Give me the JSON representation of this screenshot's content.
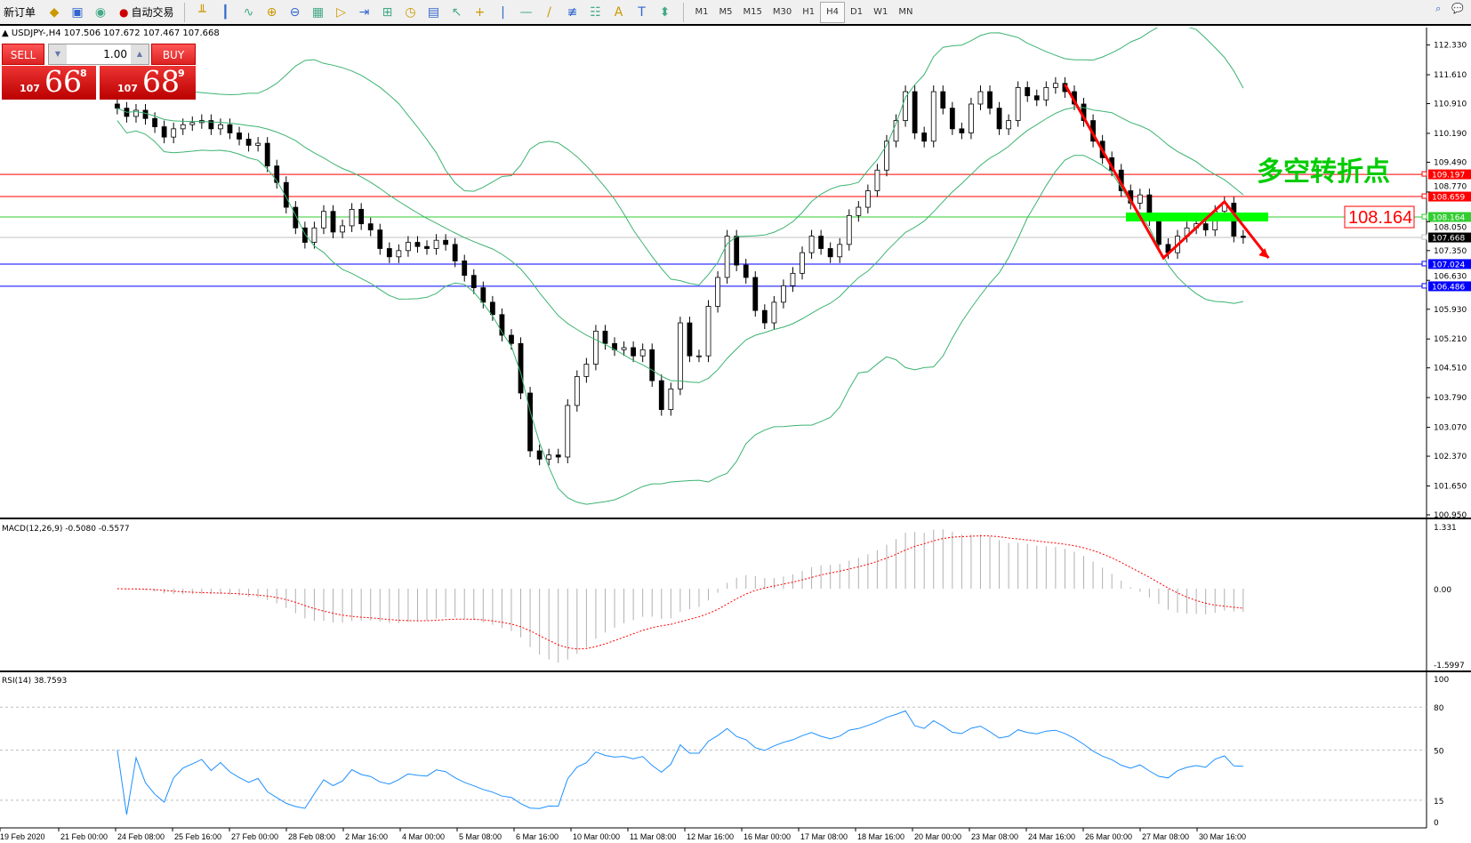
{
  "toolbar": {
    "new_order": "新订单",
    "auto_trading": "自动交易",
    "icons": [
      "market-watch-icon",
      "data-window-icon",
      "signals-icon",
      "bar-chart-icon",
      "candlestick-icon",
      "line-chart-icon",
      "zoom-in-icon",
      "zoom-out-icon",
      "tile-windows-icon",
      "auto-scroll-icon",
      "chart-shift-icon",
      "indicators-icon",
      "periods-icon",
      "templates-icon",
      "cursor-icon",
      "crosshair-icon",
      "vertical-line-icon",
      "horizontal-line-icon",
      "trendline-icon",
      "equidistant-channel-icon",
      "fibonacci-icon",
      "text-icon",
      "text-label-icon",
      "arrows-icon"
    ],
    "glyphs": [
      "◆",
      "▣",
      "◉",
      "╨",
      "┃",
      "∿",
      "⊕",
      "⊖",
      "▦",
      "▷",
      "⇥",
      "⊞",
      "◷",
      "▤",
      "↖",
      "+",
      "|",
      "—",
      "/",
      "≢",
      "☷",
      "A",
      "T",
      "⬍"
    ],
    "timeframes": [
      "M1",
      "M5",
      "M15",
      "M30",
      "H1",
      "H4",
      "D1",
      "W1",
      "MN"
    ],
    "active_timeframe": "H4"
  },
  "symbol_header": "USDJPY-,H4  107.506 107.672 107.467 107.668",
  "trade_panel": {
    "sell_label": "SELL",
    "buy_label": "BUY",
    "lot": "1.00",
    "sell_price": {
      "small": "107",
      "main": "66",
      "pip": "8"
    },
    "buy_price": {
      "small": "107",
      "main": "68",
      "pip": "9"
    }
  },
  "price_axis": [
    "112.330",
    "111.610",
    "110.910",
    "110.190",
    "109.490",
    "108.770",
    "108.050",
    "107.350",
    "106.630",
    "105.930",
    "105.210",
    "104.510",
    "103.790",
    "103.070",
    "102.370",
    "101.650",
    "100.950"
  ],
  "hlines": [
    {
      "value": "109.197",
      "color": "#ff0000"
    },
    {
      "value": "108.659",
      "color": "#ff0000"
    },
    {
      "value": "108.164",
      "color": "#32cd32"
    },
    {
      "value": "107.668",
      "color": "#c0c0c0",
      "label_bg": "#000000"
    },
    {
      "value": "107.024",
      "color": "#0000ff"
    },
    {
      "value": "106.486",
      "color": "#0000ff"
    }
  ],
  "annotations": {
    "title": "多空转折点",
    "level_box": "108.164",
    "title_color": "#00cc00",
    "arrow_color": "#ff0000"
  },
  "macd": {
    "header": "MACD(12,26,9) -0.5080 -0.5577",
    "axis": [
      "1.331",
      "0.00",
      "-1.5997"
    ]
  },
  "rsi": {
    "header": "RSI(14) 38.7593",
    "axis": [
      "100",
      "80",
      "50",
      "15",
      "0"
    ]
  },
  "time_axis": [
    "19 Feb 2020",
    "21 Feb 00:00",
    "24 Feb 08:00",
    "25 Feb 16:00",
    "27 Feb 00:00",
    "28 Feb 08:00",
    "2 Mar 16:00",
    "4 Mar 00:00",
    "5 Mar 08:00",
    "6 Mar 16:00",
    "10 Mar 00:00",
    "11 Mar 08:00",
    "12 Mar 16:00",
    "16 Mar 00:00",
    "17 Mar 08:00",
    "18 Mar 16:00",
    "20 Mar 00:00",
    "23 Mar 08:00",
    "24 Mar 16:00",
    "26 Mar 00:00",
    "27 Mar 08:00",
    "30 Mar 16:00"
  ],
  "chart_data": {
    "type": "candlestick",
    "symbol": "USDJPY",
    "timeframe": "H4",
    "ylim": [
      100.95,
      112.33
    ],
    "bullish_color": "#ffffff",
    "bearish_color": "#000000",
    "bands_color": "#3cb371",
    "close": [
      110.8,
      110.6,
      110.75,
      110.55,
      110.35,
      110.1,
      110.3,
      110.4,
      110.45,
      110.5,
      110.3,
      110.4,
      110.2,
      110.05,
      109.9,
      109.95,
      109.4,
      109.0,
      108.4,
      107.9,
      107.55,
      107.9,
      108.3,
      107.8,
      107.95,
      108.35,
      108.0,
      107.85,
      107.4,
      107.2,
      107.35,
      107.55,
      107.45,
      107.4,
      107.6,
      107.5,
      107.1,
      106.75,
      106.45,
      106.1,
      105.8,
      105.3,
      105.1,
      103.9,
      102.5,
      102.3,
      102.4,
      102.35,
      103.6,
      104.3,
      104.6,
      105.4,
      105.1,
      104.95,
      105.0,
      104.8,
      104.95,
      104.2,
      103.5,
      104.0,
      105.6,
      104.8,
      104.8,
      106.0,
      106.7,
      107.7,
      107.0,
      106.7,
      105.9,
      105.6,
      106.1,
      106.5,
      106.8,
      107.3,
      107.7,
      107.4,
      107.2,
      107.5,
      108.2,
      108.4,
      108.8,
      109.3,
      110.0,
      110.5,
      111.2,
      110.2,
      110.0,
      111.2,
      110.8,
      110.3,
      110.2,
      110.9,
      111.2,
      110.8,
      110.3,
      110.5,
      111.3,
      111.1,
      111.0,
      111.3,
      111.4,
      111.2,
      110.9,
      110.5,
      110.0,
      109.6,
      109.3,
      108.8,
      108.5,
      108.7,
      108.1,
      107.5,
      107.3,
      107.7,
      107.9,
      108.0,
      107.85,
      108.3,
      108.5,
      107.7,
      107.668
    ]
  }
}
